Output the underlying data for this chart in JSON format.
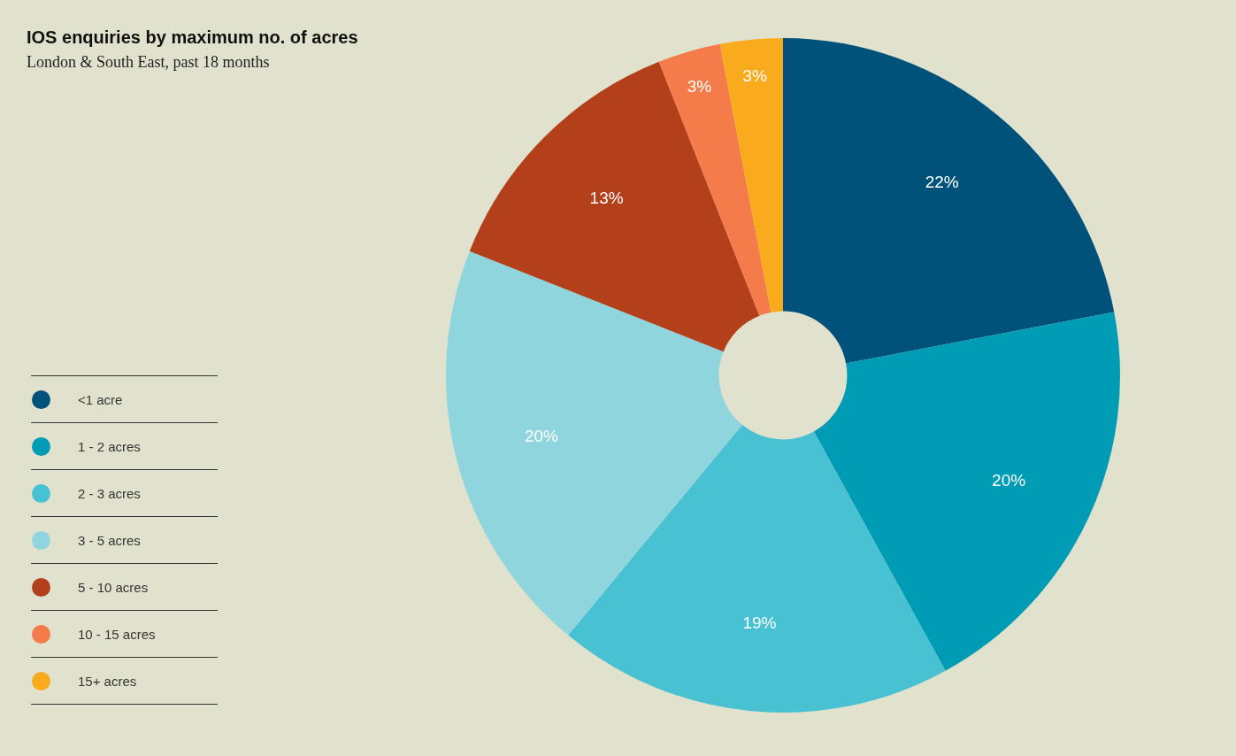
{
  "chart_data": {
    "type": "donut",
    "title": "IOS enquiries by maximum no. of acres",
    "subtitle": "London & South East, past 18 months",
    "categories": [
      "<1 acre",
      "1 - 2 acres",
      "2 - 3 acres",
      "3 - 5 acres",
      "5 - 10 acres",
      "10 - 15 acres",
      "15+ acres"
    ],
    "values": [
      22,
      20,
      19,
      20,
      13,
      3,
      3
    ],
    "colors": [
      "#00527a",
      "#009bb5",
      "#48c1d2",
      "#8fd5de",
      "#b33f1b",
      "#f47c4a",
      "#f9ab1d"
    ],
    "value_labels": [
      "22%",
      "20%",
      "19%",
      "20%",
      "13%",
      "3%",
      "3%"
    ],
    "legend": "left"
  }
}
